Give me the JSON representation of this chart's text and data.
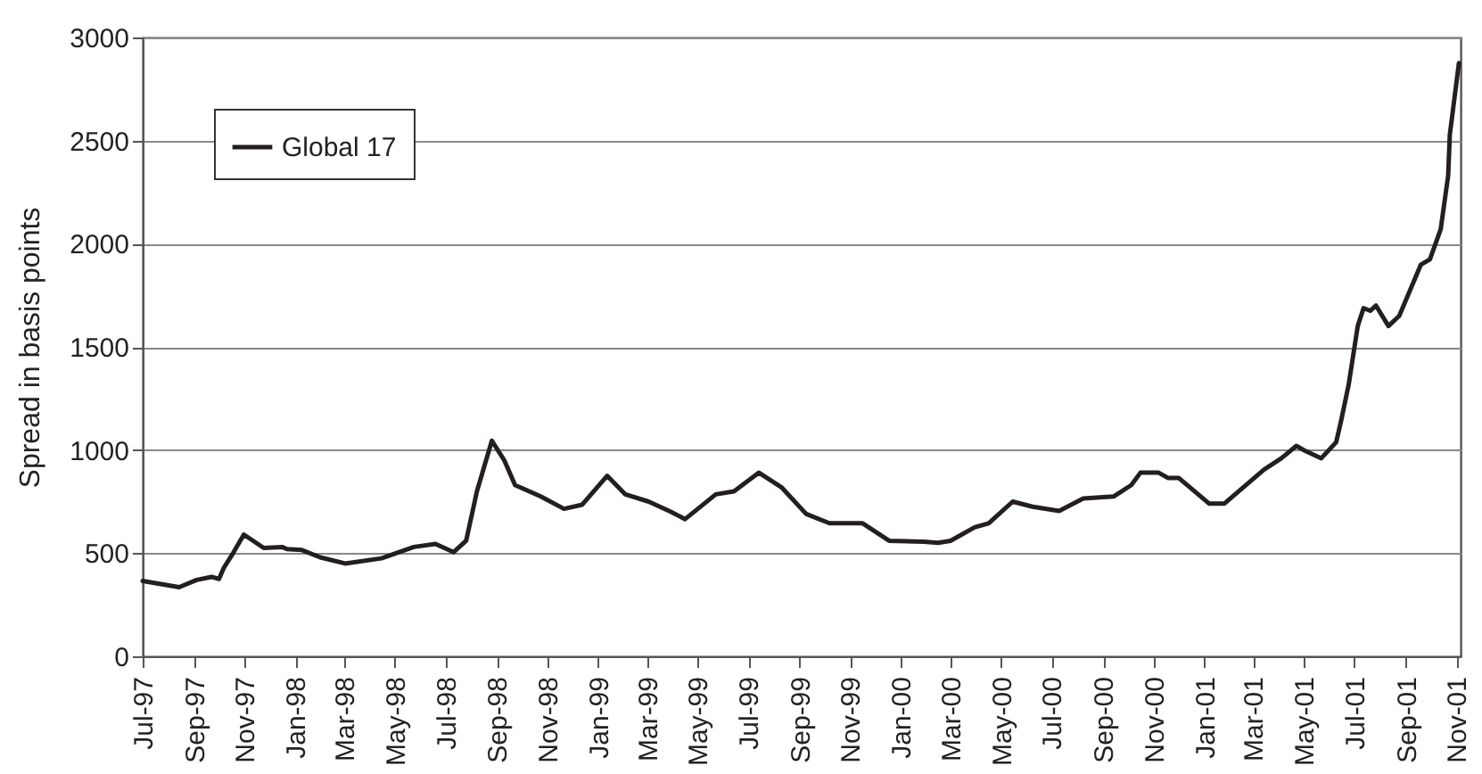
{
  "chart_data": {
    "type": "line",
    "ylabel": "Spread in basis points",
    "x": [
      "1997-07-01",
      "1997-08-14",
      "1997-09-04",
      "1997-09-22",
      "1997-10-01",
      "1997-10-07",
      "1997-10-18",
      "1997-10-31",
      "1997-11-24",
      "1997-12-16",
      "1997-12-22",
      "1998-01-09",
      "1998-01-31",
      "1998-03-02",
      "1998-04-15",
      "1998-05-24",
      "1998-06-19",
      "1998-07-11",
      "1998-07-26",
      "1998-08-08",
      "1998-08-26",
      "1998-09-10",
      "1998-09-23",
      "1998-10-24",
      "1998-11-21",
      "1998-12-13",
      "1999-01-12",
      "1999-02-03",
      "1999-03-03",
      "1999-03-30",
      "1999-04-16",
      "1999-05-23",
      "1999-06-14",
      "1999-07-14",
      "1999-08-10",
      "1999-09-09",
      "1999-10-07",
      "1999-11-16",
      "1999-12-18",
      "2000-01-29",
      "2000-02-15",
      "2000-03-01",
      "2000-03-30",
      "2000-04-16",
      "2000-05-15",
      "2000-06-08",
      "2000-07-10",
      "2000-08-08",
      "2000-09-14",
      "2000-10-05",
      "2000-10-16",
      "2000-11-07",
      "2000-11-18",
      "2000-12-01",
      "2001-01-07",
      "2001-01-25",
      "2001-03-14",
      "2001-04-04",
      "2001-04-22",
      "2001-05-03",
      "2001-05-22",
      "2001-06-09",
      "2001-06-15",
      "2001-06-24",
      "2001-07-05",
      "2001-07-12",
      "2001-07-20",
      "2001-07-27",
      "2001-08-11",
      "2001-08-24",
      "2001-09-08",
      "2001-09-19",
      "2001-09-30",
      "2001-10-13",
      "2001-10-22",
      "2001-10-24",
      "2001-11-04"
    ],
    "series": [
      {
        "name": "Global 17",
        "color": "#231f20",
        "values": [
          365,
          335,
          370,
          385,
          375,
          430,
          500,
          590,
          525,
          530,
          520,
          515,
          480,
          450,
          475,
          530,
          545,
          505,
          560,
          800,
          1045,
          950,
          830,
          775,
          715,
          735,
          875,
          785,
          750,
          700,
          665,
          785,
          800,
          890,
          820,
          690,
          645,
          645,
          560,
          555,
          550,
          560,
          625,
          645,
          750,
          725,
          705,
          765,
          775,
          830,
          890,
          890,
          865,
          865,
          740,
          740,
          905,
          960,
          1020,
          995,
          960,
          1038,
          1143,
          1316,
          1601,
          1688,
          1675,
          1700,
          1601,
          1650,
          1793,
          1898,
          1924,
          2070,
          2330,
          2529,
          2876
        ]
      }
    ],
    "xlim": [
      "1997-07-01",
      "2001-11-06"
    ],
    "xticks": [
      {
        "value": "1997-07-01",
        "label": "Jul-97"
      },
      {
        "value": "1997-09-01",
        "label": "Sep-97"
      },
      {
        "value": "1997-11-01",
        "label": "Nov-97"
      },
      {
        "value": "1998-01-01",
        "label": "Jan-98"
      },
      {
        "value": "1998-03-01",
        "label": "Mar-98"
      },
      {
        "value": "1998-05-01",
        "label": "May-98"
      },
      {
        "value": "1998-07-01",
        "label": "Jul-98"
      },
      {
        "value": "1998-09-01",
        "label": "Sep-98"
      },
      {
        "value": "1998-11-01",
        "label": "Nov-98"
      },
      {
        "value": "1999-01-01",
        "label": "Jan-99"
      },
      {
        "value": "1999-03-01",
        "label": "Mar-99"
      },
      {
        "value": "1999-05-01",
        "label": "May-99"
      },
      {
        "value": "1999-07-01",
        "label": "Jul-99"
      },
      {
        "value": "1999-09-01",
        "label": "Sep-99"
      },
      {
        "value": "1999-11-01",
        "label": "Nov-99"
      },
      {
        "value": "2000-01-01",
        "label": "Jan-00"
      },
      {
        "value": "2000-03-01",
        "label": "Mar-00"
      },
      {
        "value": "2000-05-01",
        "label": "May-00"
      },
      {
        "value": "2000-07-01",
        "label": "Jul-00"
      },
      {
        "value": "2000-09-01",
        "label": "Sep-00"
      },
      {
        "value": "2000-11-01",
        "label": "Nov-00"
      },
      {
        "value": "2001-01-01",
        "label": "Jan-01"
      },
      {
        "value": "2001-03-01",
        "label": "Mar-01"
      },
      {
        "value": "2001-05-01",
        "label": "May-01"
      },
      {
        "value": "2001-07-01",
        "label": "Jul-01"
      },
      {
        "value": "2001-09-01",
        "label": "Sep-01"
      },
      {
        "value": "2001-11-01",
        "label": "Nov-01"
      }
    ],
    "ylim": [
      0,
      3000
    ],
    "yticks": [
      0,
      500,
      1000,
      1500,
      2000,
      2500,
      3000
    ],
    "grid": "y",
    "legend": "top left",
    "marker": "none",
    "line_style": "solid"
  }
}
